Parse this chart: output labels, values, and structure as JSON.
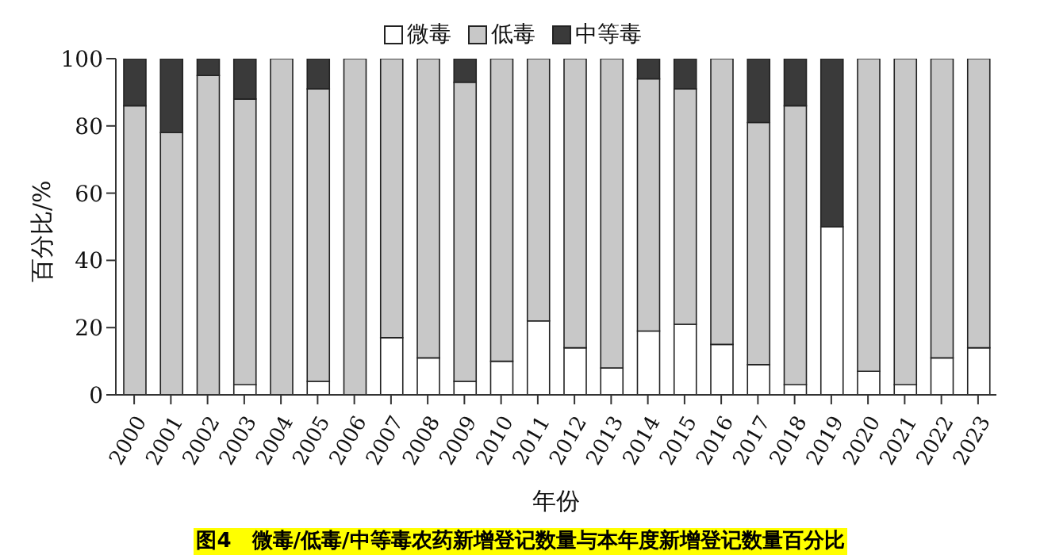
{
  "chart_data": {
    "type": "bar",
    "stacked": true,
    "xlabel": "年份",
    "ylabel": "百分比/%",
    "legend": "top",
    "grid": false,
    "categories": [
      "2000",
      "2001",
      "2002",
      "2003",
      "2004",
      "2005",
      "2006",
      "2007",
      "2008",
      "2009",
      "2010",
      "2011",
      "2012",
      "2013",
      "2014",
      "2015",
      "2016",
      "2017",
      "2018",
      "2019",
      "2020",
      "2021",
      "2022",
      "2023"
    ],
    "ylim": [
      0,
      100
    ],
    "yticks": [
      0,
      20,
      40,
      60,
      80,
      100
    ],
    "series": [
      {
        "name": "微毒",
        "color": "#ffffff",
        "values": [
          0,
          0,
          0,
          3,
          0,
          4,
          0,
          17,
          11,
          4,
          10,
          22,
          14,
          8,
          19,
          21,
          15,
          9,
          3,
          50,
          7,
          3,
          11,
          14
        ]
      },
      {
        "name": "低毒",
        "color": "#c8c8c8",
        "values": [
          86,
          78,
          95,
          85,
          100,
          87,
          100,
          83,
          89,
          89,
          90,
          78,
          86,
          92,
          75,
          70,
          85,
          72,
          83,
          0,
          93,
          97,
          89,
          86
        ]
      },
      {
        "name": "中等毒",
        "color": "#3a3a3a",
        "values": [
          14,
          22,
          5,
          12,
          0,
          9,
          0,
          0,
          0,
          7,
          0,
          0,
          0,
          0,
          6,
          9,
          0,
          19,
          14,
          50,
          0,
          0,
          0,
          0
        ]
      }
    ],
    "annotations": [
      "图4　微毒/低毒/中等毒农药新增登记数量与本年度新增登记数量百分比"
    ]
  }
}
